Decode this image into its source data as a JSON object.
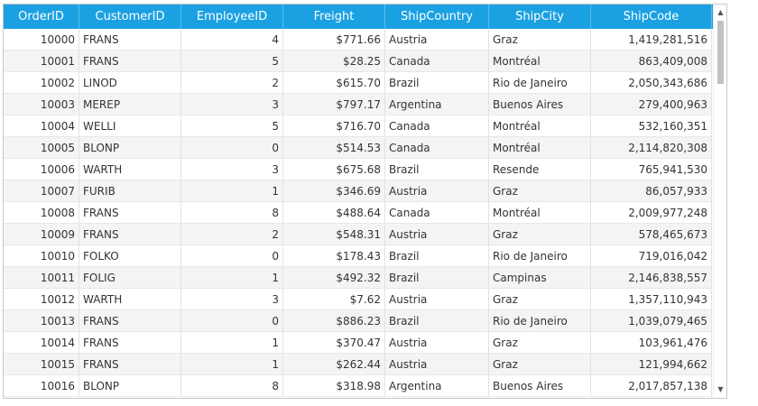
{
  "grid": {
    "columns": [
      "OrderID",
      "CustomerID",
      "EmployeeID",
      "Freight",
      "ShipCountry",
      "ShipCity",
      "ShipCode"
    ],
    "rows": [
      [
        "10000",
        "FRANS",
        "4",
        "$771.66",
        "Austria",
        "Graz",
        "1,419,281,516"
      ],
      [
        "10001",
        "FRANS",
        "5",
        "$28.25",
        "Canada",
        "Montréal",
        "863,409,008"
      ],
      [
        "10002",
        "LINOD",
        "2",
        "$615.70",
        "Brazil",
        "Rio de Janeiro",
        "2,050,343,686"
      ],
      [
        "10003",
        "MEREP",
        "3",
        "$797.17",
        "Argentina",
        "Buenos Aires",
        "279,400,963"
      ],
      [
        "10004",
        "WELLI",
        "5",
        "$716.70",
        "Canada",
        "Montréal",
        "532,160,351"
      ],
      [
        "10005",
        "BLONP",
        "0",
        "$514.53",
        "Canada",
        "Montréal",
        "2,114,820,308"
      ],
      [
        "10006",
        "WARTH",
        "3",
        "$675.68",
        "Brazil",
        "Resende",
        "765,941,530"
      ],
      [
        "10007",
        "FURIB",
        "1",
        "$346.69",
        "Austria",
        "Graz",
        "86,057,933"
      ],
      [
        "10008",
        "FRANS",
        "8",
        "$488.64",
        "Canada",
        "Montréal",
        "2,009,977,248"
      ],
      [
        "10009",
        "FRANS",
        "2",
        "$548.31",
        "Austria",
        "Graz",
        "578,465,673"
      ],
      [
        "10010",
        "FOLKO",
        "0",
        "$178.43",
        "Brazil",
        "Rio de Janeiro",
        "719,016,042"
      ],
      [
        "10011",
        "FOLIG",
        "1",
        "$492.32",
        "Brazil",
        "Campinas",
        "2,146,838,557"
      ],
      [
        "10012",
        "WARTH",
        "3",
        "$7.62",
        "Austria",
        "Graz",
        "1,357,110,943"
      ],
      [
        "10013",
        "FRANS",
        "0",
        "$886.23",
        "Brazil",
        "Rio de Janeiro",
        "1,039,079,465"
      ],
      [
        "10014",
        "FRANS",
        "1",
        "$370.47",
        "Austria",
        "Graz",
        "103,961,476"
      ],
      [
        "10015",
        "FRANS",
        "1",
        "$262.44",
        "Austria",
        "Graz",
        "121,994,662"
      ],
      [
        "10016",
        "BLONP",
        "8",
        "$318.98",
        "Argentina",
        "Buenos Aires",
        "2,017,857,138"
      ]
    ],
    "alignments": [
      "r",
      "l",
      "r",
      "r",
      "l",
      "l",
      "r"
    ],
    "header_color": "#1ba1e2",
    "scroll_up_icon": "triangle-up-icon",
    "scroll_down_icon": "triangle-down-icon"
  }
}
